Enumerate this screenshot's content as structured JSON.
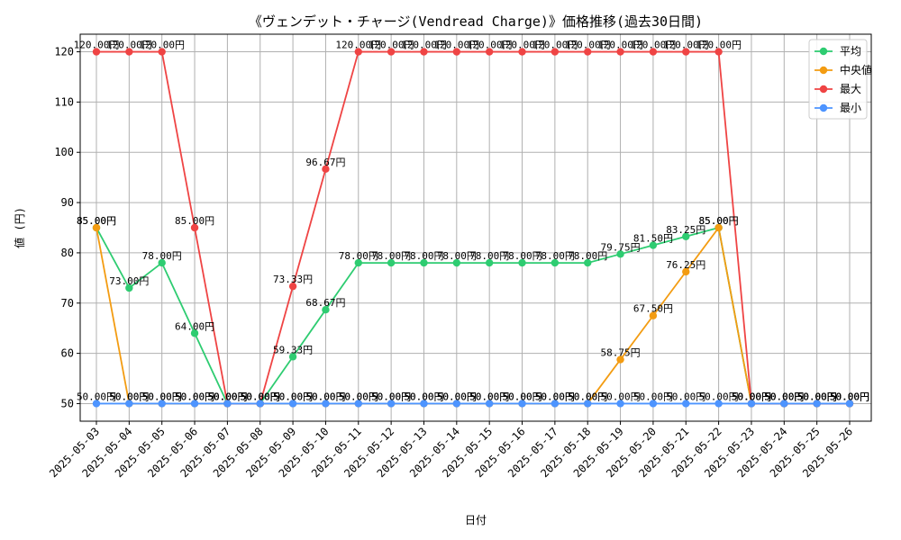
{
  "chart_data": {
    "type": "line",
    "title": "《ヴェンデット・チャージ(Vendread Charge)》価格推移(過去30日間)",
    "xlabel": "日付",
    "ylabel": "値 (円)",
    "ylim": [
      46.5,
      123.5
    ],
    "yticks": [
      50,
      60,
      70,
      80,
      90,
      100,
      110,
      120
    ],
    "grid": true,
    "legend_position": "top-right",
    "value_suffix": "円",
    "categories": [
      "2025-05-03",
      "2025-05-04",
      "2025-05-05",
      "2025-05-06",
      "2025-05-07",
      "2025-05-08",
      "2025-05-09",
      "2025-05-10",
      "2025-05-11",
      "2025-05-12",
      "2025-05-13",
      "2025-05-14",
      "2025-05-15",
      "2025-05-16",
      "2025-05-17",
      "2025-05-18",
      "2025-05-19",
      "2025-05-20",
      "2025-05-21",
      "2025-05-22",
      "2025-05-23",
      "2025-05-24",
      "2025-05-25",
      "2025-05-26"
    ],
    "series": [
      {
        "name": "平均",
        "color": "#2ecc71",
        "values": [
          85,
          73,
          78,
          64,
          50,
          50,
          59.33,
          68.67,
          78,
          78,
          78,
          78,
          78,
          78,
          78,
          78,
          79.75,
          81.5,
          83.25,
          85,
          50,
          50,
          50,
          50
        ]
      },
      {
        "name": "中央値",
        "color": "#f39c12",
        "values": [
          85,
          50,
          50,
          50,
          50,
          50,
          50,
          50,
          50,
          50,
          50,
          50,
          50,
          50,
          50,
          50,
          58.75,
          67.5,
          76.25,
          85,
          50,
          50,
          50,
          50
        ]
      },
      {
        "name": "最大",
        "color": "#ef4444",
        "values": [
          120,
          120,
          120,
          85,
          50,
          50,
          73.33,
          96.67,
          120,
          120,
          120,
          120,
          120,
          120,
          120,
          120,
          120,
          120,
          120,
          120,
          50,
          50,
          50,
          50
        ]
      },
      {
        "name": "最小",
        "color": "#4d94ff",
        "values": [
          50,
          50,
          50,
          50,
          50,
          50,
          50,
          50,
          50,
          50,
          50,
          50,
          50,
          50,
          50,
          50,
          50,
          50,
          50,
          50,
          50,
          50,
          50,
          50
        ]
      }
    ]
  }
}
